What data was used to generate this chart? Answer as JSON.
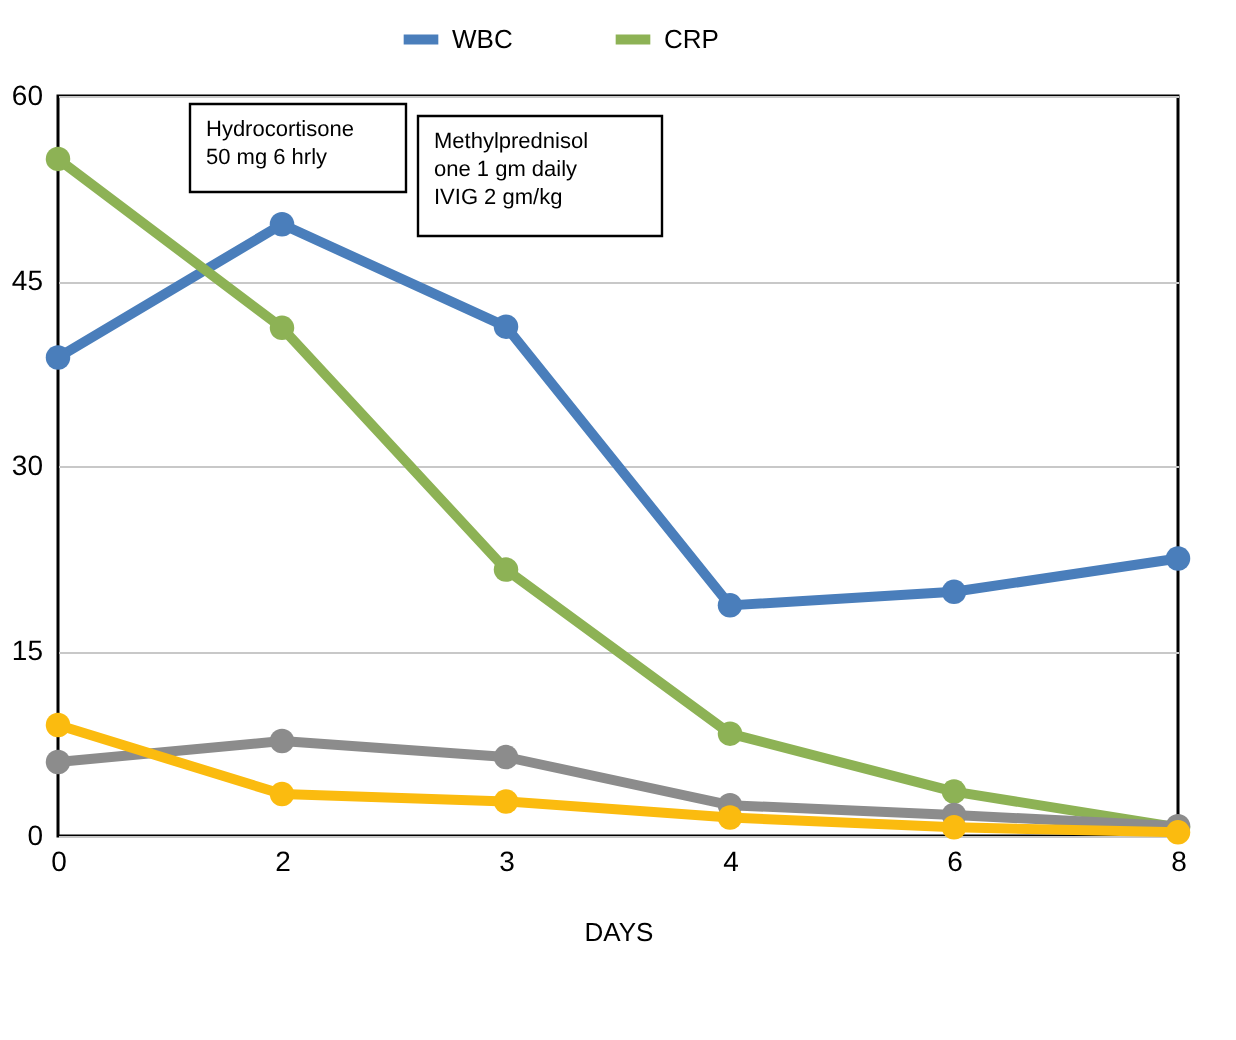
{
  "chart_data": {
    "type": "line",
    "xlabel": "DAYS",
    "categories": [
      "0",
      "2",
      "3",
      "4",
      "6",
      "8"
    ],
    "series": [
      {
        "name": "WBC",
        "color": "#4a7ebb",
        "values": [
          38.8,
          49.6,
          41.3,
          18.7,
          19.8,
          22.5
        ]
      },
      {
        "name": "CRP",
        "color": "#8db255",
        "values": [
          54.9,
          41.2,
          21.6,
          8.3,
          3.6,
          0.7
        ]
      },
      {
        "color": "#8c8c8c",
        "values": [
          6.0,
          7.7,
          6.4,
          2.5,
          1.7,
          0.8
        ]
      },
      {
        "color": "#fbbb0f",
        "values": [
          9.0,
          3.4,
          2.8,
          1.5,
          0.7,
          0.3
        ]
      }
    ],
    "ylim": [
      0,
      60
    ],
    "yticks": [
      0,
      15,
      30,
      45,
      60
    ],
    "grid": "y",
    "legend": "top",
    "marker": "circle",
    "line_style": "solid",
    "annotations": [
      "Hydrocortisone\n50 mg 6 hrly",
      "Methylprednisol\none 1 gm daily\nIVIG 2 gm/kg"
    ]
  }
}
